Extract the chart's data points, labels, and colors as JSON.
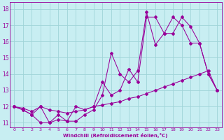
{
  "xlabel": "Windchill (Refroidissement éolien,°C)",
  "bg_color": "#c8eef2",
  "grid_color": "#a0d4d8",
  "line_color": "#990099",
  "xlim": [
    -0.5,
    23.5
  ],
  "ylim": [
    10.7,
    18.4
  ],
  "yticks": [
    11,
    12,
    13,
    14,
    15,
    16,
    17,
    18
  ],
  "xticks": [
    0,
    1,
    2,
    3,
    4,
    5,
    6,
    7,
    8,
    9,
    10,
    11,
    12,
    13,
    14,
    15,
    16,
    17,
    18,
    19,
    20,
    21,
    22,
    23
  ],
  "line1_x": [
    0,
    1,
    2,
    3,
    4,
    5,
    6,
    7,
    8,
    9,
    10,
    11,
    12,
    13,
    14,
    15,
    16,
    17,
    18,
    19,
    20,
    21,
    22,
    23
  ],
  "line1_y": [
    12.0,
    11.8,
    11.5,
    11.0,
    11.0,
    11.5,
    11.1,
    11.1,
    11.5,
    11.8,
    12.7,
    15.3,
    14.0,
    13.5,
    14.2,
    17.8,
    15.8,
    16.5,
    17.5,
    17.0,
    15.9,
    15.9,
    14.0,
    13.0
  ],
  "line2_x": [
    0,
    1,
    2,
    3,
    4,
    5,
    6,
    7,
    8,
    9,
    10,
    11,
    12,
    13,
    14,
    15,
    16,
    17,
    18,
    19,
    20,
    21,
    22,
    23
  ],
  "line2_y": [
    12.0,
    11.8,
    11.5,
    12.0,
    11.0,
    11.2,
    11.1,
    12.0,
    11.8,
    12.0,
    13.5,
    12.7,
    13.0,
    14.3,
    13.5,
    17.5,
    17.5,
    16.5,
    16.5,
    17.5,
    16.9,
    15.9,
    14.0,
    13.0
  ],
  "line3_x": [
    0,
    1,
    2,
    3,
    4,
    5,
    6,
    7,
    8,
    9,
    10,
    11,
    12,
    13,
    14,
    15,
    16,
    17,
    18,
    19,
    20,
    21,
    22,
    23
  ],
  "line3_y": [
    12.0,
    11.9,
    11.7,
    12.0,
    11.8,
    11.7,
    11.6,
    11.7,
    11.8,
    12.0,
    12.1,
    12.2,
    12.3,
    12.5,
    12.6,
    12.8,
    13.0,
    13.2,
    13.4,
    13.6,
    13.8,
    14.0,
    14.2,
    13.0
  ]
}
